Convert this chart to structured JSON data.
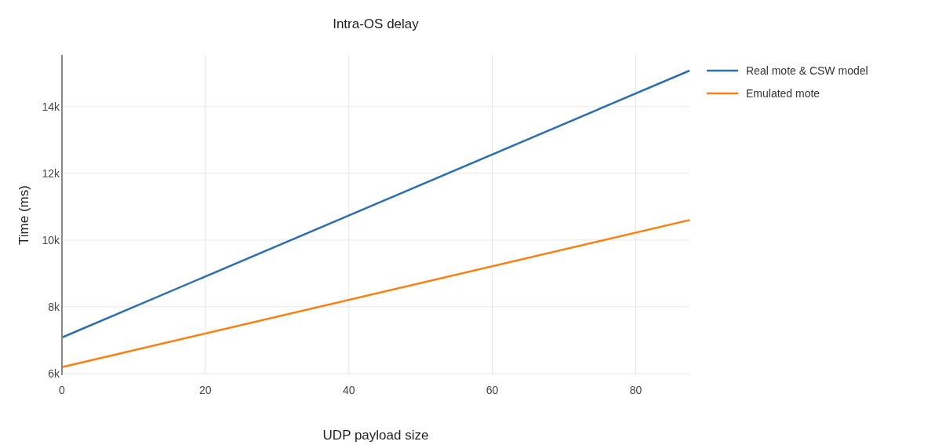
{
  "chart_data": {
    "type": "line",
    "title": "Intra-OS delay",
    "xlabel": "UDP payload size",
    "ylabel": "Time (ms)",
    "x": [
      0,
      87.5
    ],
    "series": [
      {
        "name": "Real mote & CSW model",
        "color": "#2e6fad",
        "values": [
          7080,
          15080
        ]
      },
      {
        "name": "Emulated mote",
        "color": "#ff7f0e",
        "values": [
          6190,
          10600
        ]
      }
    ],
    "xlim": [
      0,
      87.5
    ],
    "xticks": [
      0,
      20,
      40,
      60,
      80
    ],
    "ylim": [
      5950,
      15550
    ],
    "yticks": [
      {
        "value": 6000,
        "label": "6k"
      },
      {
        "value": 8000,
        "label": "8k"
      },
      {
        "value": 10000,
        "label": "10k"
      },
      {
        "value": 12000,
        "label": "12k"
      },
      {
        "value": 14000,
        "label": "14k"
      }
    ],
    "grid": true,
    "legend": "top right",
    "marker": "none",
    "line_style": "solid"
  }
}
